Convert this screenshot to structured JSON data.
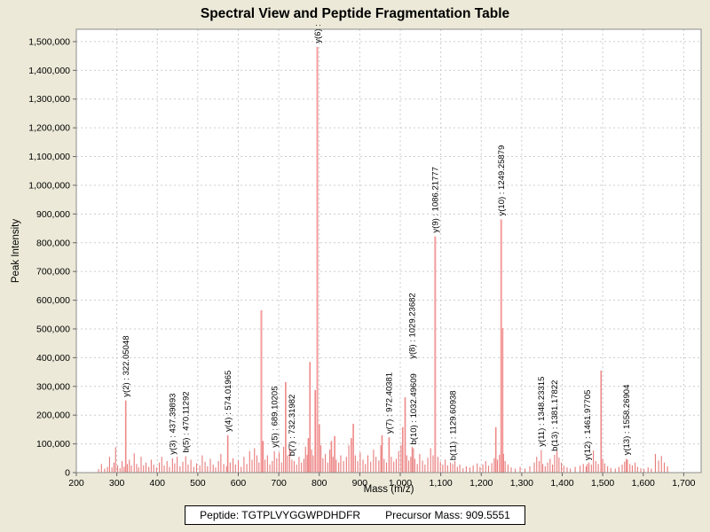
{
  "header": {
    "title": "Spectral View and Peptide Fragmentation Table"
  },
  "footer": {
    "peptide_label": "Peptide: TGTPLVYGGWPDHDFR",
    "precursor_label": "Precursor Mass: 909.5551"
  },
  "colors": {
    "background": "#ece9d8",
    "plot_background": "#ffffff",
    "plot_border": "#8c8c8c",
    "gridline": "#cccccc",
    "peak_small": "#e87a7a",
    "peak_medium": "#ef8888",
    "peak_large": "#f49c9c",
    "text": "#000000"
  },
  "chart_data": {
    "type": "bar",
    "title": "Spectral View and Peptide Fragmentation Table",
    "xlabel": "Mass (m/z)",
    "ylabel": "Peak Intensity",
    "xlim": [
      200,
      1743
    ],
    "ylim": [
      0,
      1543000
    ],
    "x_ticks": [
      200,
      300,
      400,
      500,
      600,
      700,
      800,
      900,
      1000,
      1100,
      1200,
      1300,
      1400,
      1500,
      1600,
      1700
    ],
    "y_ticks": [
      0,
      100000,
      200000,
      300000,
      400000,
      500000,
      600000,
      700000,
      800000,
      900000,
      1000000,
      1100000,
      1200000,
      1300000,
      1400000,
      1500000
    ],
    "grid": true,
    "legend": "none",
    "annotations": [
      {
        "fragment": "y(2)",
        "mz": 322.05048,
        "intensity": 251000,
        "label": "y(2) : 322.05048"
      },
      {
        "fragment": "y(3)",
        "mz": 437.39893,
        "intensity": 50000,
        "label": "y(3) : 437.39893"
      },
      {
        "fragment": "b(5)",
        "mz": 470.11292,
        "intensity": 57000,
        "label": "b(5) : 470.11292"
      },
      {
        "fragment": "y(4)",
        "mz": 574.01965,
        "intensity": 130000,
        "label": "y(4) : 574.01965"
      },
      {
        "fragment": "y(5)",
        "mz": 689.10205,
        "intensity": 75000,
        "label": "y(5) : 689.10205"
      },
      {
        "fragment": "b(7)",
        "mz": 732.31982,
        "intensity": 45000,
        "label": "b(7) : 732.31982"
      },
      {
        "fragment": "y(6)",
        "mz": 795.2,
        "intensity": 1482000,
        "label": "y(6) :",
        "value_clipped": true
      },
      {
        "fragment": "y(7)",
        "mz": 972.40381,
        "intensity": 123000,
        "label": "y(7) : 972.40381"
      },
      {
        "fragment": "y(8)",
        "mz": 1029.23682,
        "intensity": 90000,
        "label": "y(8) : 1029.23682",
        "dy": -95
      },
      {
        "fragment": "b(10)",
        "mz": 1032.49609,
        "intensity": 85000,
        "label": "b(10) : 1032.49609"
      },
      {
        "fragment": "y(9)",
        "mz": 1086.21777,
        "intensity": 822000,
        "label": "y(9) : 1086.21777"
      },
      {
        "fragment": "b(11)",
        "mz": 1129.60938,
        "intensity": 30000,
        "label": "b(11) : 1129.60938"
      },
      {
        "fragment": "y(10)",
        "mz": 1249.25879,
        "intensity": 881000,
        "label": "y(10) : 1249.25879"
      },
      {
        "fragment": "y(11)",
        "mz": 1348.23315,
        "intensity": 78000,
        "label": "y(11) : 1348.23315"
      },
      {
        "fragment": "b(13)",
        "mz": 1381.17822,
        "intensity": 62000,
        "label": "b(13) : 1381.17822"
      },
      {
        "fragment": "y(12)",
        "mz": 1461.97705,
        "intensity": 30000,
        "label": "y(12) : 1461.97705"
      },
      {
        "fragment": "y(13)",
        "mz": 1558.26904,
        "intensity": 48000,
        "label": "y(13) : 1558.26904"
      }
    ],
    "peaks": [
      [
        255,
        12000
      ],
      [
        262,
        30000
      ],
      [
        270,
        14000
      ],
      [
        277,
        20000
      ],
      [
        282,
        55000
      ],
      [
        288,
        18000
      ],
      [
        293,
        35000
      ],
      [
        297,
        88000
      ],
      [
        302,
        25000
      ],
      [
        308,
        15000
      ],
      [
        313,
        40000
      ],
      [
        318,
        20000
      ],
      [
        326,
        30000
      ],
      [
        331,
        45000
      ],
      [
        336,
        25000
      ],
      [
        343,
        67000
      ],
      [
        349,
        30000
      ],
      [
        354,
        18000
      ],
      [
        360,
        55000
      ],
      [
        366,
        25000
      ],
      [
        372,
        35000
      ],
      [
        379,
        20000
      ],
      [
        385,
        45000
      ],
      [
        391,
        28000
      ],
      [
        398,
        18000
      ],
      [
        405,
        35000
      ],
      [
        411,
        55000
      ],
      [
        417,
        25000
      ],
      [
        424,
        40000
      ],
      [
        430,
        20000
      ],
      [
        443,
        32000
      ],
      [
        449,
        55000
      ],
      [
        456,
        22000
      ],
      [
        463,
        38000
      ],
      [
        476,
        28000
      ],
      [
        483,
        45000
      ],
      [
        490,
        20000
      ],
      [
        497,
        32000
      ],
      [
        505,
        25000
      ],
      [
        511,
        60000
      ],
      [
        518,
        38000
      ],
      [
        524,
        22000
      ],
      [
        531,
        48000
      ],
      [
        538,
        28000
      ],
      [
        544,
        18000
      ],
      [
        551,
        40000
      ],
      [
        557,
        65000
      ],
      [
        564,
        30000
      ],
      [
        571,
        22000
      ],
      [
        580,
        35000
      ],
      [
        587,
        50000
      ],
      [
        593,
        28000
      ],
      [
        600,
        42000
      ],
      [
        607,
        20000
      ],
      [
        614,
        55000
      ],
      [
        621,
        30000
      ],
      [
        628,
        75000
      ],
      [
        634,
        45000
      ],
      [
        640,
        85000
      ],
      [
        646,
        60000
      ],
      [
        651,
        35000
      ],
      [
        657,
        565000
      ],
      [
        661,
        110000
      ],
      [
        666,
        45000
      ],
      [
        672,
        60000
      ],
      [
        678,
        28000
      ],
      [
        684,
        40000
      ],
      [
        695,
        50000
      ],
      [
        701,
        70000
      ],
      [
        707,
        35000
      ],
      [
        712,
        90000
      ],
      [
        717,
        315000
      ],
      [
        722,
        60000
      ],
      [
        727,
        85000
      ],
      [
        738,
        40000
      ],
      [
        744,
        28000
      ],
      [
        750,
        55000
      ],
      [
        756,
        35000
      ],
      [
        762,
        48000
      ],
      [
        766,
        90000
      ],
      [
        770,
        62000
      ],
      [
        773,
        120000
      ],
      [
        777,
        385000
      ],
      [
        781,
        80000
      ],
      [
        785,
        60000
      ],
      [
        790,
        287000
      ],
      [
        800,
        168000
      ],
      [
        804,
        95000
      ],
      [
        809,
        50000
      ],
      [
        815,
        65000
      ],
      [
        821,
        35000
      ],
      [
        826,
        80000
      ],
      [
        830,
        110000
      ],
      [
        834,
        55000
      ],
      [
        838,
        127000
      ],
      [
        842,
        45000
      ],
      [
        848,
        35000
      ],
      [
        853,
        60000
      ],
      [
        860,
        40000
      ],
      [
        867,
        55000
      ],
      [
        873,
        95000
      ],
      [
        879,
        120000
      ],
      [
        884,
        170000
      ],
      [
        889,
        60000
      ],
      [
        895,
        40000
      ],
      [
        901,
        70000
      ],
      [
        908,
        45000
      ],
      [
        914,
        30000
      ],
      [
        920,
        60000
      ],
      [
        927,
        38000
      ],
      [
        934,
        80000
      ],
      [
        940,
        55000
      ],
      [
        947,
        42000
      ],
      [
        952,
        95000
      ],
      [
        955,
        130000
      ],
      [
        960,
        48000
      ],
      [
        966,
        35000
      ],
      [
        978,
        55000
      ],
      [
        984,
        38000
      ],
      [
        990,
        48000
      ],
      [
        996,
        75000
      ],
      [
        1002,
        95000
      ],
      [
        1006,
        158000
      ],
      [
        1012,
        262000
      ],
      [
        1016,
        60000
      ],
      [
        1021,
        42000
      ],
      [
        1026,
        55000
      ],
      [
        1036,
        48000
      ],
      [
        1042,
        30000
      ],
      [
        1048,
        65000
      ],
      [
        1055,
        42000
      ],
      [
        1061,
        28000
      ],
      [
        1068,
        52000
      ],
      [
        1075,
        85000
      ],
      [
        1081,
        60000
      ],
      [
        1093,
        55000
      ],
      [
        1099,
        38000
      ],
      [
        1105,
        28000
      ],
      [
        1111,
        45000
      ],
      [
        1117,
        25000
      ],
      [
        1124,
        35000
      ],
      [
        1135,
        40000
      ],
      [
        1141,
        20000
      ],
      [
        1147,
        28000
      ],
      [
        1155,
        15000
      ],
      [
        1163,
        22000
      ],
      [
        1172,
        18000
      ],
      [
        1180,
        25000
      ],
      [
        1190,
        32000
      ],
      [
        1197,
        20000
      ],
      [
        1204,
        28000
      ],
      [
        1211,
        40000
      ],
      [
        1218,
        24000
      ],
      [
        1226,
        33000
      ],
      [
        1232,
        50000
      ],
      [
        1236,
        158000
      ],
      [
        1240,
        45000
      ],
      [
        1245,
        62000
      ],
      [
        1252.5,
        503000
      ],
      [
        1255,
        65000
      ],
      [
        1259,
        40000
      ],
      [
        1266,
        28000
      ],
      [
        1274,
        18000
      ],
      [
        1284,
        14000
      ],
      [
        1296,
        20000
      ],
      [
        1308,
        14000
      ],
      [
        1320,
        22000
      ],
      [
        1331,
        35000
      ],
      [
        1337,
        55000
      ],
      [
        1343,
        40000
      ],
      [
        1352,
        30000
      ],
      [
        1358,
        22000
      ],
      [
        1364,
        35000
      ],
      [
        1370,
        48000
      ],
      [
        1376,
        28000
      ],
      [
        1387,
        75000
      ],
      [
        1392,
        52000
      ],
      [
        1398,
        35000
      ],
      [
        1404,
        24000
      ],
      [
        1412,
        18000
      ],
      [
        1420,
        14000
      ],
      [
        1432,
        20000
      ],
      [
        1444,
        24000
      ],
      [
        1452,
        30000
      ],
      [
        1459,
        22000
      ],
      [
        1466,
        35000
      ],
      [
        1472,
        28000
      ],
      [
        1477,
        77000
      ],
      [
        1483,
        40000
      ],
      [
        1489,
        30000
      ],
      [
        1496,
        355000
      ],
      [
        1500,
        48000
      ],
      [
        1505,
        32000
      ],
      [
        1512,
        22000
      ],
      [
        1520,
        16000
      ],
      [
        1531,
        14000
      ],
      [
        1540,
        20000
      ],
      [
        1548,
        28000
      ],
      [
        1554,
        38000
      ],
      [
        1561,
        45000
      ],
      [
        1567,
        30000
      ],
      [
        1573,
        25000
      ],
      [
        1580,
        35000
      ],
      [
        1586,
        20000
      ],
      [
        1594,
        15000
      ],
      [
        1602,
        12000
      ],
      [
        1612,
        18000
      ],
      [
        1620,
        14000
      ],
      [
        1630,
        65000
      ],
      [
        1638,
        42000
      ],
      [
        1645,
        58000
      ],
      [
        1652,
        35000
      ],
      [
        1660,
        22000
      ]
    ]
  }
}
